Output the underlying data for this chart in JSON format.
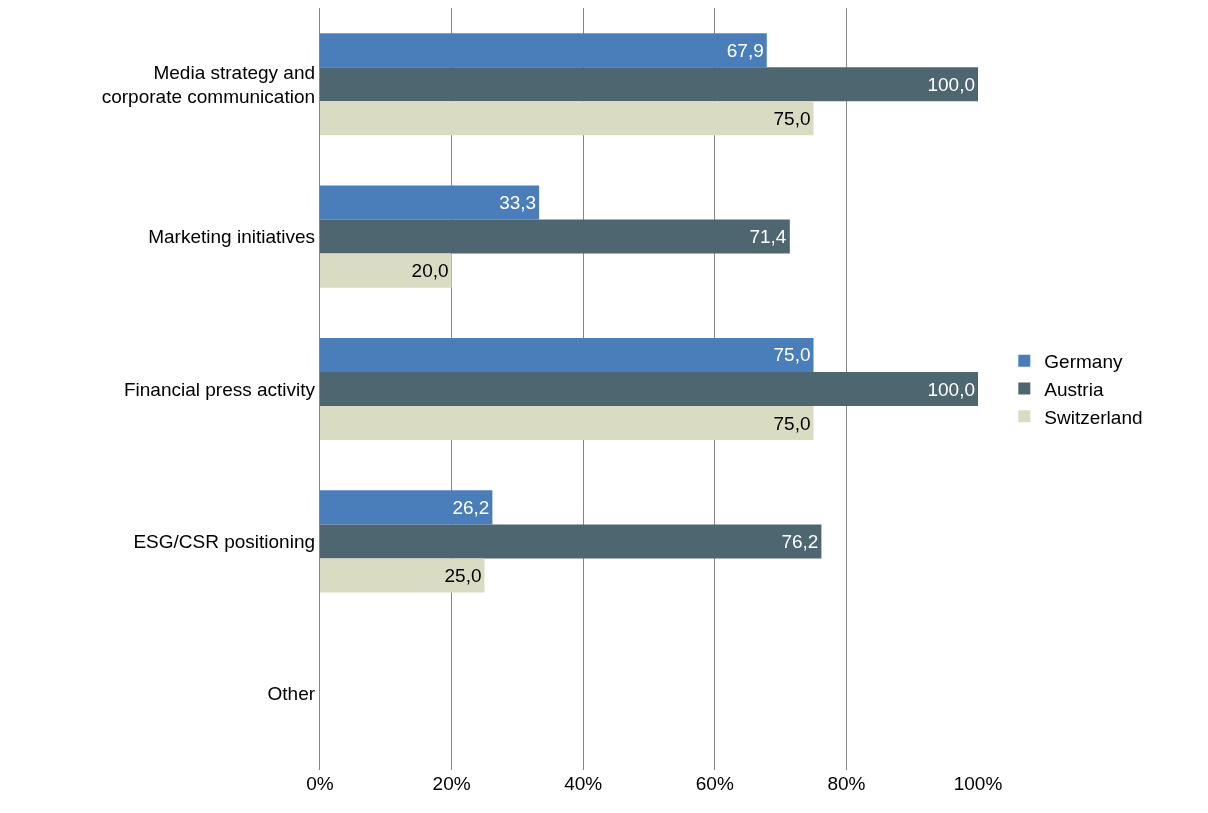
{
  "chart_data": {
    "type": "bar",
    "orientation": "horizontal",
    "categories": [
      "Media strategy and corporate communication",
      "Marketing initiatives",
      "Financial press activity",
      "ESG/CSR positioning",
      "Other"
    ],
    "series": [
      {
        "name": "Germany",
        "color": "#4a7ebb",
        "values": [
          67.9,
          33.3,
          75.0,
          26.2,
          null
        ],
        "value_labels": [
          "67,9",
          "33,3",
          "75,0",
          "26,2",
          null
        ]
      },
      {
        "name": "Austria",
        "color": "#4d6670",
        "values": [
          100.0,
          71.4,
          100.0,
          76.2,
          null
        ],
        "value_labels": [
          "100,0",
          "71,4",
          "100,0",
          "76,2",
          null
        ]
      },
      {
        "name": "Switzerland",
        "color": "#d9dcc3",
        "values": [
          75.0,
          20.0,
          75.0,
          25.0,
          null
        ],
        "value_labels": [
          "75,0",
          "20,0",
          "75,0",
          "25,0",
          null
        ]
      }
    ],
    "xlim": [
      0,
      100
    ],
    "xticks": [
      {
        "value": 0,
        "label": "0%"
      },
      {
        "value": 20,
        "label": "20%"
      },
      {
        "value": 40,
        "label": "40%"
      },
      {
        "value": 60,
        "label": "60%"
      },
      {
        "value": 80,
        "label": "80%"
      },
      {
        "value": 100,
        "label": "100%"
      }
    ],
    "grid": "x",
    "legend": "right"
  }
}
